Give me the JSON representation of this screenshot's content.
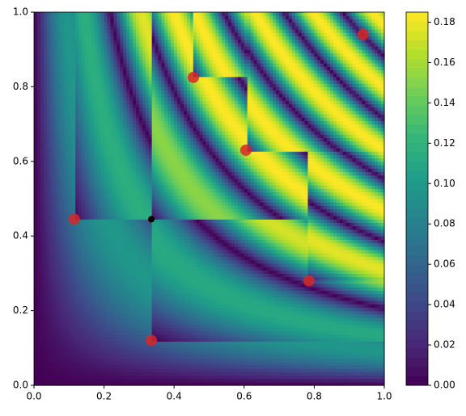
{
  "chart_data": {
    "type": "contour",
    "xlim": [
      0,
      1
    ],
    "ylim": [
      0,
      1
    ],
    "xticks": [
      {
        "value": 0,
        "label": "0.0"
      },
      0.2,
      0.4,
      0.6,
      0.8,
      {
        "value": 1,
        "label": "1.0"
      }
    ],
    "yticks": [
      {
        "value": 0,
        "label": "0.0"
      },
      0.2,
      0.4,
      0.6,
      0.8,
      {
        "value": 1,
        "label": "1.0"
      }
    ],
    "points": {
      "x": [
        0.115,
        0.335,
        0.455,
        0.605,
        0.785,
        0.94
      ],
      "y": [
        0.445,
        0.12,
        0.825,
        0.63,
        0.28,
        0.94
      ],
      "color": "#d62728"
    },
    "marker": {
      "x": 0.335,
      "y": 0.445,
      "color": "#000000"
    },
    "colorbar": {
      "lim": [
        0,
        0.185
      ],
      "ticks": [
        {
          "value": 0,
          "label": "0.00"
        },
        {
          "value": 0.02,
          "label": "0.02"
        },
        {
          "value": 0.04,
          "label": "0.04"
        },
        {
          "value": 0.06,
          "label": "0.06"
        },
        {
          "value": 0.08,
          "label": "0.08"
        },
        {
          "value": 0.1,
          "label": "0.10"
        },
        {
          "value": 0.12,
          "label": "0.12"
        },
        {
          "value": 0.14,
          "label": "0.14"
        },
        {
          "value": 0.16,
          "label": "0.16"
        },
        {
          "value": 0.18,
          "label": "0.18"
        }
      ],
      "colormap": [
        "#440154",
        "#482878",
        "#3e4989",
        "#31688e",
        "#26828e",
        "#1f9e89",
        "#35b779",
        "#6ece58",
        "#b5de2b",
        "#fde725"
      ]
    }
  }
}
